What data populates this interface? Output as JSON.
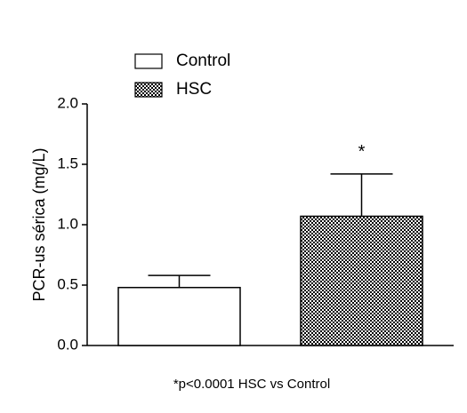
{
  "chart_data": {
    "type": "bar",
    "y_label": "PCR-us sérica (mg/L)",
    "series": [
      {
        "name": "Control",
        "pattern": "solid",
        "color": "#ffffff",
        "value": 0.48,
        "error": 0.1
      },
      {
        "name": "HSC",
        "pattern": "checker",
        "color": "#000000",
        "value": 1.07,
        "error": 0.35,
        "annotation": "*"
      }
    ],
    "ylim": [
      0,
      2.0
    ],
    "yticks": [
      {
        "value": 0,
        "label": "0.0"
      },
      {
        "value": 0.5,
        "label": "0.5"
      },
      {
        "value": 1,
        "label": "1.0"
      },
      {
        "value": 1.5,
        "label": "1.5"
      },
      {
        "value": 2,
        "label": "2.0"
      }
    ],
    "footnote": "*p<0.0001 HSC vs Control",
    "grid": false
  }
}
